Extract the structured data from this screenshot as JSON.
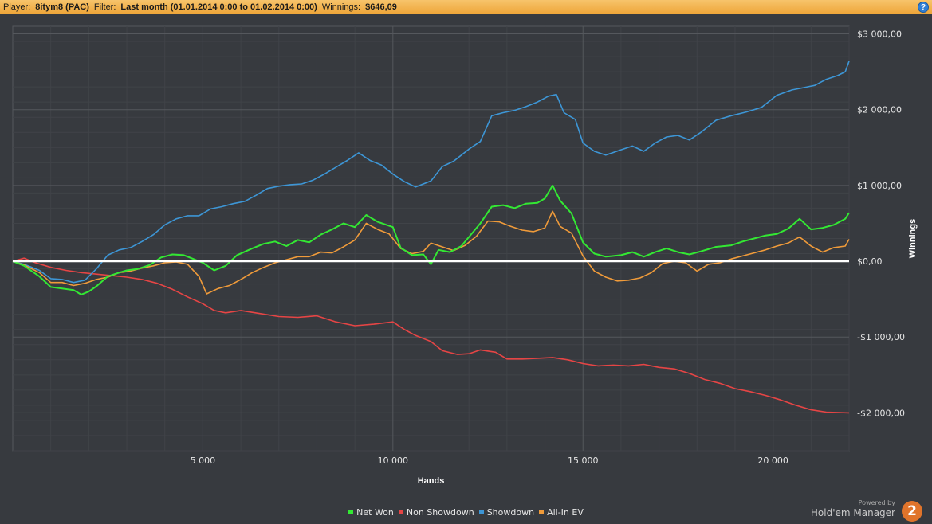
{
  "header": {
    "player_label": "Player:",
    "player_value": "8itym8 (PAC)",
    "filter_label": "Filter:",
    "filter_value": "Last month (01.01.2014 0:00 to 01.02.2014 0:00)",
    "winnings_label": "Winnings:",
    "winnings_value": "$646,09",
    "help_label": "?"
  },
  "brand": {
    "powered_by": "Powered by",
    "name": "Hold'em Manager",
    "logo_text": "2"
  },
  "colors": {
    "background": "#373a3f",
    "grid": "#4a4d52",
    "zero_line": "#ffffff",
    "header": "#eea63a"
  },
  "chart_data": {
    "type": "line",
    "xlabel": "Hands",
    "ylabel": "Winnings",
    "xlim": [
      0,
      22000
    ],
    "ylim": [
      -2500,
      3100
    ],
    "x_ticks": [
      5000,
      10000,
      15000,
      20000
    ],
    "x_tick_labels": [
      "5 000",
      "10 000",
      "15 000",
      "20 000"
    ],
    "y_ticks": [
      3000,
      2000,
      1000,
      0,
      -1000,
      -2000
    ],
    "y_tick_labels": [
      "$3 000,00",
      "$2 000,00",
      "$1 000,00",
      "$0,00",
      "-$1 000,00",
      "-$2 000,00"
    ],
    "grid": true,
    "legend_position": "bottom",
    "series": [
      {
        "name": "Net Won",
        "color": "#33e833",
        "points": [
          [
            0,
            0
          ],
          [
            300,
            -60
          ],
          [
            700,
            -200
          ],
          [
            1000,
            -340
          ],
          [
            1300,
            -360
          ],
          [
            1600,
            -380
          ],
          [
            1800,
            -440
          ],
          [
            2000,
            -400
          ],
          [
            2200,
            -330
          ],
          [
            2500,
            -200
          ],
          [
            2800,
            -150
          ],
          [
            3000,
            -120
          ],
          [
            3300,
            -100
          ],
          [
            3600,
            -50
          ],
          [
            3900,
            50
          ],
          [
            4200,
            90
          ],
          [
            4500,
            80
          ],
          [
            4700,
            40
          ],
          [
            5000,
            -20
          ],
          [
            5300,
            -120
          ],
          [
            5600,
            -60
          ],
          [
            5900,
            80
          ],
          [
            6300,
            170
          ],
          [
            6600,
            230
          ],
          [
            6900,
            260
          ],
          [
            7200,
            200
          ],
          [
            7500,
            280
          ],
          [
            7800,
            250
          ],
          [
            8100,
            350
          ],
          [
            8400,
            420
          ],
          [
            8700,
            500
          ],
          [
            9000,
            450
          ],
          [
            9300,
            610
          ],
          [
            9600,
            520
          ],
          [
            10000,
            450
          ],
          [
            10200,
            180
          ],
          [
            10500,
            80
          ],
          [
            10800,
            90
          ],
          [
            11000,
            -40
          ],
          [
            11200,
            150
          ],
          [
            11500,
            120
          ],
          [
            11800,
            200
          ],
          [
            12000,
            320
          ],
          [
            12300,
            500
          ],
          [
            12600,
            720
          ],
          [
            12900,
            740
          ],
          [
            13200,
            700
          ],
          [
            13500,
            760
          ],
          [
            13800,
            770
          ],
          [
            14000,
            830
          ],
          [
            14200,
            1000
          ],
          [
            14400,
            800
          ],
          [
            14700,
            630
          ],
          [
            15000,
            250
          ],
          [
            15300,
            100
          ],
          [
            15600,
            60
          ],
          [
            16000,
            80
          ],
          [
            16300,
            120
          ],
          [
            16600,
            60
          ],
          [
            16900,
            120
          ],
          [
            17200,
            170
          ],
          [
            17500,
            120
          ],
          [
            17800,
            90
          ],
          [
            18100,
            130
          ],
          [
            18500,
            190
          ],
          [
            18900,
            210
          ],
          [
            19200,
            260
          ],
          [
            19500,
            300
          ],
          [
            19800,
            340
          ],
          [
            20100,
            360
          ],
          [
            20400,
            430
          ],
          [
            20700,
            560
          ],
          [
            21000,
            420
          ],
          [
            21300,
            440
          ],
          [
            21600,
            480
          ],
          [
            21900,
            560
          ],
          [
            22000,
            640
          ]
        ]
      },
      {
        "name": "Non Showdown",
        "color": "#e64545",
        "points": [
          [
            0,
            0
          ],
          [
            300,
            40
          ],
          [
            600,
            -20
          ],
          [
            1000,
            -80
          ],
          [
            1400,
            -120
          ],
          [
            1800,
            -150
          ],
          [
            2200,
            -170
          ],
          [
            2600,
            -190
          ],
          [
            3000,
            -210
          ],
          [
            3400,
            -240
          ],
          [
            3800,
            -290
          ],
          [
            4200,
            -370
          ],
          [
            4600,
            -470
          ],
          [
            5000,
            -560
          ],
          [
            5300,
            -650
          ],
          [
            5600,
            -680
          ],
          [
            6000,
            -650
          ],
          [
            6500,
            -690
          ],
          [
            7000,
            -730
          ],
          [
            7500,
            -740
          ],
          [
            8000,
            -720
          ],
          [
            8500,
            -800
          ],
          [
            9000,
            -850
          ],
          [
            9500,
            -830
          ],
          [
            10000,
            -800
          ],
          [
            10300,
            -900
          ],
          [
            10600,
            -980
          ],
          [
            11000,
            -1060
          ],
          [
            11300,
            -1180
          ],
          [
            11700,
            -1230
          ],
          [
            12000,
            -1220
          ],
          [
            12300,
            -1170
          ],
          [
            12700,
            -1200
          ],
          [
            13000,
            -1290
          ],
          [
            13400,
            -1290
          ],
          [
            13800,
            -1280
          ],
          [
            14200,
            -1270
          ],
          [
            14600,
            -1300
          ],
          [
            15000,
            -1350
          ],
          [
            15400,
            -1380
          ],
          [
            15800,
            -1370
          ],
          [
            16200,
            -1380
          ],
          [
            16600,
            -1360
          ],
          [
            17000,
            -1400
          ],
          [
            17400,
            -1420
          ],
          [
            17800,
            -1480
          ],
          [
            18200,
            -1560
          ],
          [
            18600,
            -1610
          ],
          [
            19000,
            -1680
          ],
          [
            19400,
            -1720
          ],
          [
            19800,
            -1770
          ],
          [
            20200,
            -1830
          ],
          [
            20600,
            -1900
          ],
          [
            21000,
            -1960
          ],
          [
            21400,
            -1990
          ],
          [
            22000,
            -2000
          ]
        ]
      },
      {
        "name": "Showdown",
        "color": "#3d96d6",
        "points": [
          [
            0,
            0
          ],
          [
            300,
            -40
          ],
          [
            700,
            -120
          ],
          [
            1000,
            -230
          ],
          [
            1300,
            -240
          ],
          [
            1600,
            -280
          ],
          [
            1900,
            -250
          ],
          [
            2200,
            -100
          ],
          [
            2500,
            80
          ],
          [
            2800,
            150
          ],
          [
            3100,
            180
          ],
          [
            3400,
            260
          ],
          [
            3700,
            350
          ],
          [
            4000,
            480
          ],
          [
            4300,
            560
          ],
          [
            4600,
            600
          ],
          [
            4900,
            600
          ],
          [
            5200,
            690
          ],
          [
            5500,
            720
          ],
          [
            5800,
            760
          ],
          [
            6100,
            790
          ],
          [
            6400,
            870
          ],
          [
            6700,
            960
          ],
          [
            7000,
            990
          ],
          [
            7300,
            1010
          ],
          [
            7600,
            1020
          ],
          [
            7900,
            1070
          ],
          [
            8200,
            1150
          ],
          [
            8500,
            1240
          ],
          [
            8800,
            1330
          ],
          [
            9100,
            1430
          ],
          [
            9400,
            1330
          ],
          [
            9700,
            1270
          ],
          [
            10000,
            1150
          ],
          [
            10300,
            1050
          ],
          [
            10600,
            980
          ],
          [
            11000,
            1060
          ],
          [
            11300,
            1250
          ],
          [
            11600,
            1320
          ],
          [
            12000,
            1480
          ],
          [
            12300,
            1580
          ],
          [
            12600,
            1920
          ],
          [
            12900,
            1960
          ],
          [
            13200,
            1990
          ],
          [
            13500,
            2040
          ],
          [
            13800,
            2100
          ],
          [
            14100,
            2180
          ],
          [
            14300,
            2200
          ],
          [
            14500,
            1960
          ],
          [
            14800,
            1870
          ],
          [
            15000,
            1560
          ],
          [
            15300,
            1450
          ],
          [
            15600,
            1400
          ],
          [
            16000,
            1470
          ],
          [
            16300,
            1520
          ],
          [
            16600,
            1450
          ],
          [
            16900,
            1560
          ],
          [
            17200,
            1640
          ],
          [
            17500,
            1660
          ],
          [
            17800,
            1600
          ],
          [
            18100,
            1700
          ],
          [
            18500,
            1860
          ],
          [
            18900,
            1920
          ],
          [
            19300,
            1970
          ],
          [
            19700,
            2030
          ],
          [
            20100,
            2190
          ],
          [
            20500,
            2260
          ],
          [
            20800,
            2290
          ],
          [
            21100,
            2320
          ],
          [
            21400,
            2400
          ],
          [
            21700,
            2450
          ],
          [
            21900,
            2500
          ],
          [
            22000,
            2640
          ]
        ]
      },
      {
        "name": "All-In EV",
        "color": "#f09b3a",
        "points": [
          [
            0,
            0
          ],
          [
            300,
            -50
          ],
          [
            700,
            -150
          ],
          [
            1000,
            -280
          ],
          [
            1300,
            -280
          ],
          [
            1600,
            -320
          ],
          [
            1900,
            -290
          ],
          [
            2200,
            -240
          ],
          [
            2500,
            -210
          ],
          [
            2800,
            -150
          ],
          [
            3100,
            -130
          ],
          [
            3400,
            -90
          ],
          [
            3700,
            -60
          ],
          [
            4000,
            -20
          ],
          [
            4300,
            -10
          ],
          [
            4600,
            -40
          ],
          [
            4900,
            -200
          ],
          [
            5100,
            -430
          ],
          [
            5400,
            -360
          ],
          [
            5700,
            -320
          ],
          [
            6000,
            -240
          ],
          [
            6300,
            -150
          ],
          [
            6600,
            -80
          ],
          [
            6900,
            -20
          ],
          [
            7200,
            20
          ],
          [
            7500,
            60
          ],
          [
            7800,
            60
          ],
          [
            8100,
            120
          ],
          [
            8400,
            110
          ],
          [
            8700,
            190
          ],
          [
            9000,
            280
          ],
          [
            9300,
            500
          ],
          [
            9600,
            420
          ],
          [
            9900,
            360
          ],
          [
            10200,
            170
          ],
          [
            10500,
            100
          ],
          [
            10800,
            130
          ],
          [
            11000,
            240
          ],
          [
            11300,
            190
          ],
          [
            11600,
            140
          ],
          [
            11900,
            210
          ],
          [
            12200,
            330
          ],
          [
            12500,
            530
          ],
          [
            12800,
            520
          ],
          [
            13100,
            460
          ],
          [
            13400,
            410
          ],
          [
            13700,
            390
          ],
          [
            14000,
            440
          ],
          [
            14200,
            660
          ],
          [
            14400,
            460
          ],
          [
            14700,
            370
          ],
          [
            15000,
            70
          ],
          [
            15300,
            -130
          ],
          [
            15600,
            -210
          ],
          [
            15900,
            -260
          ],
          [
            16200,
            -250
          ],
          [
            16500,
            -220
          ],
          [
            16800,
            -150
          ],
          [
            17100,
            -30
          ],
          [
            17400,
            0
          ],
          [
            17700,
            -20
          ],
          [
            18000,
            -130
          ],
          [
            18300,
            -40
          ],
          [
            18600,
            -20
          ],
          [
            18900,
            30
          ],
          [
            19200,
            70
          ],
          [
            19500,
            110
          ],
          [
            19800,
            150
          ],
          [
            20100,
            200
          ],
          [
            20400,
            240
          ],
          [
            20700,
            320
          ],
          [
            21000,
            200
          ],
          [
            21300,
            120
          ],
          [
            21600,
            180
          ],
          [
            21900,
            200
          ],
          [
            22000,
            290
          ]
        ]
      }
    ]
  }
}
